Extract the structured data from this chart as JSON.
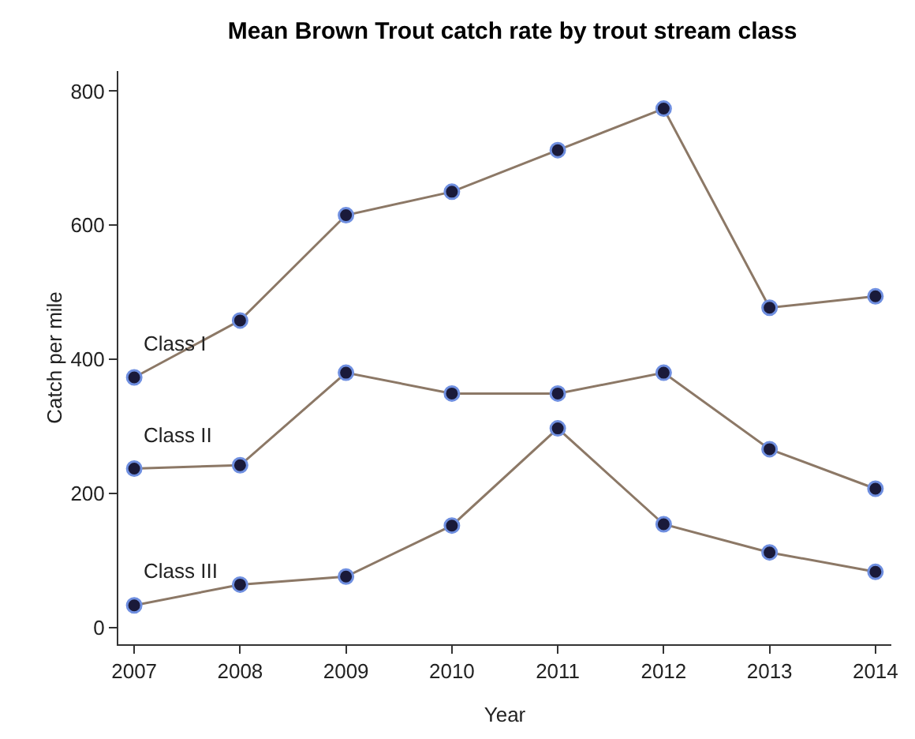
{
  "chart_data": {
    "type": "line",
    "title": "Mean Brown Trout catch rate by trout stream class",
    "xlabel": "Year",
    "ylabel": "Catch per mile",
    "x": [
      2007,
      2008,
      2009,
      2010,
      2011,
      2012,
      2013,
      2014
    ],
    "series": [
      {
        "name": "Class I",
        "color": "#8c7866",
        "values": [
          373,
          458,
          615,
          650,
          712,
          774,
          477,
          494
        ]
      },
      {
        "name": "Class II",
        "color": "#8c7866",
        "values": [
          237,
          242,
          380,
          349,
          349,
          380,
          266,
          207
        ]
      },
      {
        "name": "Class III",
        "color": "#8c7866",
        "values": [
          33,
          64,
          76,
          152,
          297,
          154,
          112,
          83
        ]
      }
    ],
    "xlim": [
      2006.85,
      2014.15
    ],
    "xticks": [
      2007,
      2008,
      2009,
      2010,
      2011,
      2012,
      2013,
      2014
    ],
    "ylim": [
      -25,
      830
    ],
    "yticks": [
      0,
      200,
      400,
      600,
      800
    ],
    "grid": false,
    "legend": false,
    "marker": "circle",
    "line_style": "solid"
  }
}
